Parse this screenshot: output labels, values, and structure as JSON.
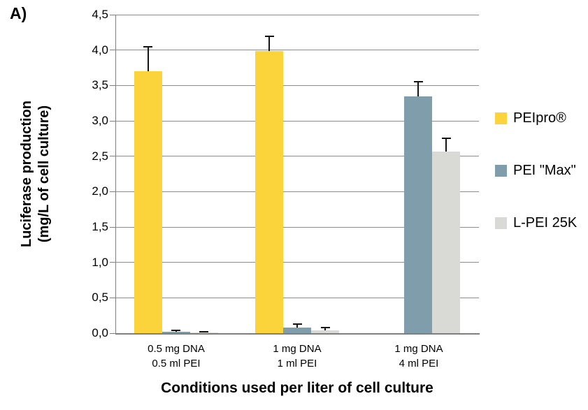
{
  "figure_label": "A)",
  "colors": {
    "gridline": "#8b8b8b",
    "axis": "#7f7f7f",
    "error_bar": "#141414",
    "background": "#ffffff"
  },
  "chart_data": {
    "type": "bar",
    "title": "",
    "xlabel": "Conditions used per liter of cell culture",
    "ylabel": "Luciferase production (mg/L of cell culture)",
    "ylabel_lines": [
      "Luciferase production",
      "(mg/L of cell culture)"
    ],
    "ylim": [
      0,
      4.5
    ],
    "ytick_step": 0.5,
    "ytick_labels": [
      "0,0",
      "0,5",
      "1,0",
      "1,5",
      "2,0",
      "2,5",
      "3,0",
      "3,5",
      "4,0",
      "4,5"
    ],
    "decimal_separator": ",",
    "grid": true,
    "legend_position": "right",
    "categories": [
      [
        "0.5 mg DNA",
        "0.5 ml PEI"
      ],
      [
        "1 mg DNA",
        "1 ml PEI"
      ],
      [
        "1 mg DNA",
        "4 ml PEI"
      ]
    ],
    "series": [
      {
        "name": "PEIpro®",
        "color": "#fbd43b",
        "values": [
          3.7,
          3.99,
          null
        ],
        "errors": [
          0.35,
          0.2,
          null
        ]
      },
      {
        "name": "PEI \"Max\"",
        "color": "#7f9daa",
        "values": [
          0.02,
          0.08,
          3.35
        ],
        "errors": [
          0.02,
          0.05,
          0.2
        ]
      },
      {
        "name": "L-PEI 25K",
        "color": "#d9dad6",
        "values": [
          0.01,
          0.04,
          2.57
        ],
        "errors": [
          0.01,
          0.04,
          0.18
        ]
      }
    ]
  }
}
